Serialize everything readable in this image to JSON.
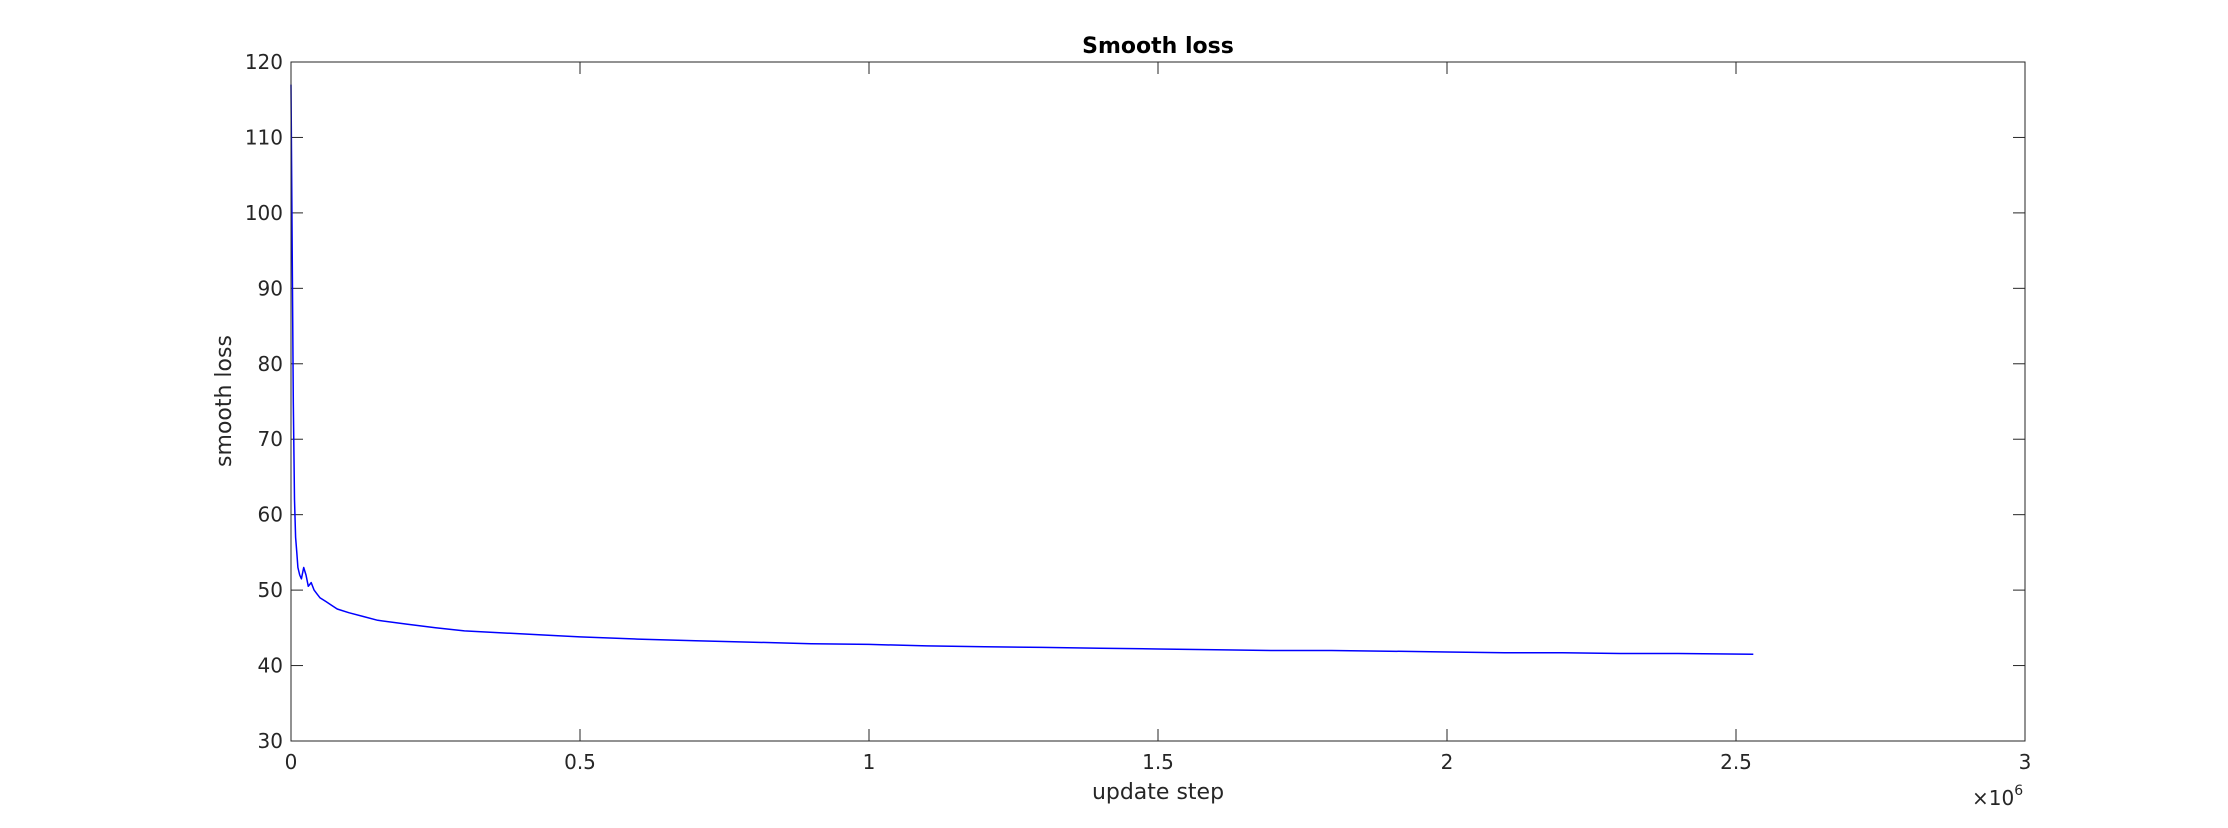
{
  "chart_data": {
    "type": "line",
    "title": "Smooth loss",
    "xlabel": "update step",
    "ylabel": "smooth loss",
    "xlim": [
      0,
      3000000
    ],
    "ylim": [
      30,
      120
    ],
    "x_ticks": [
      0,
      0.5,
      1,
      1.5,
      2,
      2.5,
      3
    ],
    "x_tick_labels": [
      "0",
      "0.5",
      "1",
      "1.5",
      "2",
      "2.5",
      "3"
    ],
    "y_ticks": [
      30,
      40,
      50,
      60,
      70,
      80,
      90,
      100,
      110,
      120
    ],
    "y_tick_labels": [
      "30",
      "40",
      "50",
      "60",
      "70",
      "80",
      "90",
      "100",
      "110",
      "120"
    ],
    "x_multiplier": {
      "base": "×10",
      "exponent": "6"
    },
    "grid": false,
    "line_color": "#0000ff",
    "series": [
      {
        "name": "",
        "x": [
          0,
          2000,
          4000,
          6000,
          8000,
          10000,
          12000,
          15000,
          18000,
          22000,
          26000,
          30000,
          35000,
          40000,
          45000,
          50000,
          60000,
          70000,
          80000,
          100000,
          125000,
          150000,
          200000,
          250000,
          300000,
          400000,
          500000,
          600000,
          700000,
          800000,
          900000,
          1000000,
          1100000,
          1200000,
          1300000,
          1400000,
          1500000,
          1600000,
          1700000,
          1800000,
          1900000,
          2000000,
          2100000,
          2200000,
          2300000,
          2400000,
          2530000
        ],
        "y": [
          117,
          95,
          75,
          62,
          57,
          55,
          53,
          52,
          51.5,
          53,
          52,
          50.5,
          51,
          50,
          49.5,
          49,
          48.5,
          48,
          47.5,
          47,
          46.5,
          46,
          45.5,
          45,
          44.6,
          44.2,
          43.8,
          43.5,
          43.3,
          43.1,
          42.9,
          42.8,
          42.6,
          42.5,
          42.4,
          42.3,
          42.2,
          42.1,
          42.0,
          42.0,
          41.9,
          41.8,
          41.7,
          41.7,
          41.6,
          41.6,
          41.5
        ]
      }
    ]
  }
}
